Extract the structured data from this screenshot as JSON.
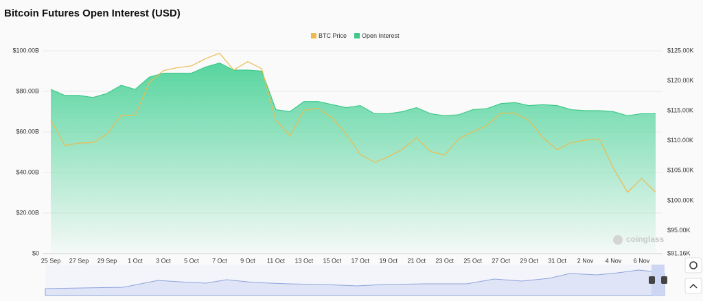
{
  "chart_data": {
    "type": "area-line",
    "title": "Bitcoin Futures Open Interest (USD)",
    "categories": [
      "25 Sep",
      null,
      "27 Sep",
      null,
      "29 Sep",
      null,
      "1 Oct",
      null,
      "3 Oct",
      null,
      "5 Oct",
      null,
      "7 Oct",
      null,
      "9 Oct",
      null,
      "11 Oct",
      null,
      "13 Oct",
      null,
      "15 Oct",
      null,
      "17 Oct",
      null,
      "19 Oct",
      null,
      "21 Oct",
      null,
      "23 Oct",
      null,
      "25 Oct",
      null,
      "27 Oct",
      null,
      "29 Oct",
      null,
      "31 Oct",
      null,
      "2 Nov",
      null,
      "4 Nov",
      null,
      "6 Nov",
      null
    ],
    "series": [
      {
        "name": "BTC Price",
        "color": "#ecbb4f",
        "axis": "y2",
        "values": [
          113.4,
          109.2,
          109.6,
          109.7,
          111.1,
          114.2,
          114.2,
          119.7,
          121.7,
          122.2,
          122.5,
          123.7,
          124.6,
          121.8,
          123.2,
          122.0,
          113.4,
          110.8,
          115.1,
          115.4,
          113.8,
          111.1,
          107.7,
          106.4,
          107.3,
          108.6,
          110.5,
          108.2,
          107.6,
          110.3,
          111.5,
          112.5,
          114.6,
          114.6,
          113.4,
          110.5,
          108.5,
          109.7,
          110.1,
          110.3,
          105.4,
          101.4,
          103.7,
          101.4
        ]
      },
      {
        "name": "Open Interest",
        "color": "#3ec98a",
        "values": [
          81,
          78,
          78,
          77,
          79,
          83,
          81,
          87,
          89,
          89,
          89,
          92,
          94,
          90.5,
          90.5,
          90,
          71,
          70,
          75,
          75,
          73.5,
          72,
          73,
          69,
          69,
          70,
          72,
          69,
          68,
          68.5,
          71,
          71.5,
          74,
          74.5,
          73,
          73.5,
          73,
          71,
          70.5,
          70.5,
          70,
          68,
          69,
          69
        ]
      }
    ],
    "ylim": [
      0,
      100
    ],
    "yticks": [
      {
        "value": 0,
        "label": "$0"
      },
      {
        "value": 20,
        "label": "$20.00B"
      },
      {
        "value": 40,
        "label": "$40.00B"
      },
      {
        "value": 60,
        "label": "$60.00B"
      },
      {
        "value": 80,
        "label": "$80.00B"
      },
      {
        "value": 100,
        "label": "$100.00B"
      }
    ],
    "y2lim": [
      91.16,
      125
    ],
    "y2ticks": [
      {
        "value": 91.16,
        "label": "$91.16K"
      },
      {
        "value": 95,
        "label": "$95.00K"
      },
      {
        "value": 100,
        "label": "$100.00K"
      },
      {
        "value": 105,
        "label": "$105.00K"
      },
      {
        "value": 110,
        "label": "$110.00K"
      },
      {
        "value": 115,
        "label": "$115.00K"
      },
      {
        "value": 120,
        "label": "$120.00K"
      },
      {
        "value": 125,
        "label": "$125.00K"
      }
    ],
    "grid": true,
    "watermark": "coinglass"
  }
}
